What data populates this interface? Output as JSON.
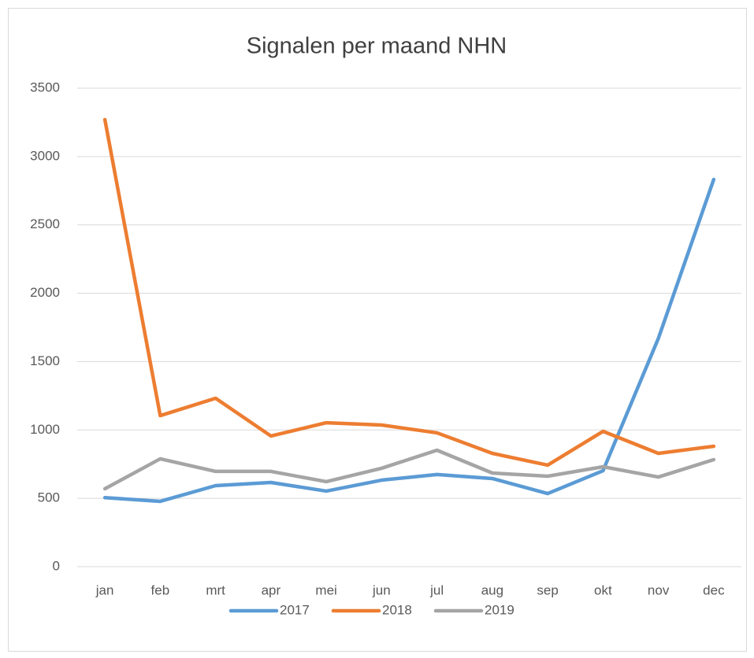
{
  "chart_data": {
    "type": "line",
    "title": "Signalen per maand NHN",
    "categories": [
      "jan",
      "feb",
      "mrt",
      "apr",
      "mei",
      "jun",
      "jul",
      "aug",
      "sep",
      "okt",
      "nov",
      "dec"
    ],
    "series": [
      {
        "name": "2017",
        "color": "#5b9bd5",
        "values": [
          505,
          478,
          593,
          616,
          553,
          633,
          674,
          645,
          535,
          702,
          1670,
          2832
        ]
      },
      {
        "name": "2018",
        "color": "#ed7d31",
        "values": [
          3270,
          1105,
          1232,
          956,
          1053,
          1036,
          979,
          829,
          743,
          990,
          829,
          881
        ]
      },
      {
        "name": "2019",
        "color": "#a5a5a5",
        "values": [
          570,
          789,
          697,
          697,
          622,
          720,
          852,
          685,
          662,
          731,
          656,
          783
        ]
      }
    ],
    "ylim": [
      0,
      3500
    ],
    "yticks": [
      0,
      500,
      1000,
      1500,
      2000,
      2500,
      3000,
      3500
    ],
    "grid": true,
    "legend": "bottom"
  }
}
